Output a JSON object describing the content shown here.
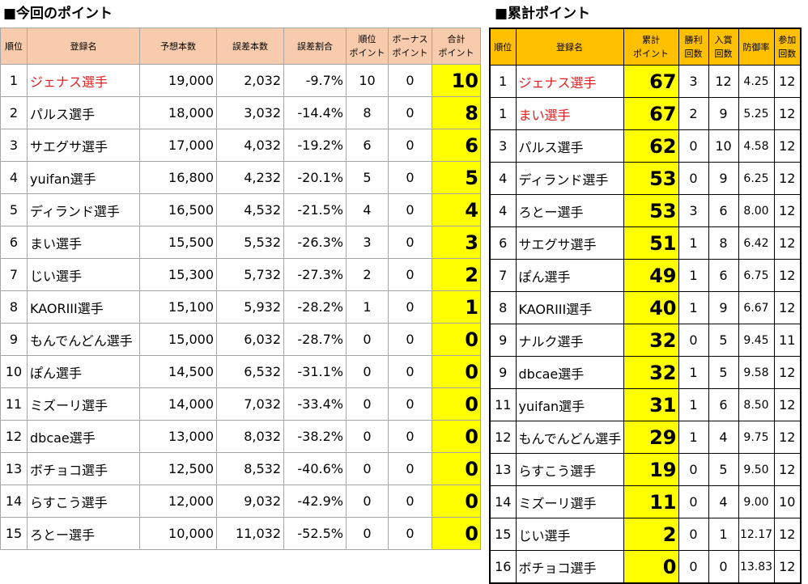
{
  "current": {
    "title": "■今回のポイント",
    "headers": [
      "順位",
      "登録名",
      "予想本数",
      "誤差本数",
      "誤差割合",
      "順位\nポイント",
      "ボーナス\nポイント",
      "合計\nポイント"
    ],
    "rows": [
      {
        "rank": "1",
        "name": "ジェナス選手",
        "red": true,
        "pred": "19,000",
        "err": "2,032",
        "ratio": "-9.7%",
        "rank_pt": "10",
        "bonus": "0",
        "total": "10"
      },
      {
        "rank": "2",
        "name": "パルス選手",
        "red": false,
        "pred": "18,000",
        "err": "3,032",
        "ratio": "-14.4%",
        "rank_pt": "8",
        "bonus": "0",
        "total": "8"
      },
      {
        "rank": "3",
        "name": "サエグサ選手",
        "red": false,
        "pred": "17,000",
        "err": "4,032",
        "ratio": "-19.2%",
        "rank_pt": "6",
        "bonus": "0",
        "total": "6"
      },
      {
        "rank": "4",
        "name": "yuifan選手",
        "red": false,
        "pred": "16,800",
        "err": "4,232",
        "ratio": "-20.1%",
        "rank_pt": "5",
        "bonus": "0",
        "total": "5"
      },
      {
        "rank": "5",
        "name": "ディランド選手",
        "red": false,
        "pred": "16,500",
        "err": "4,532",
        "ratio": "-21.5%",
        "rank_pt": "4",
        "bonus": "0",
        "total": "4"
      },
      {
        "rank": "6",
        "name": "まい選手",
        "red": false,
        "pred": "15,500",
        "err": "5,532",
        "ratio": "-26.3%",
        "rank_pt": "3",
        "bonus": "0",
        "total": "3"
      },
      {
        "rank": "7",
        "name": "じい選手",
        "red": false,
        "pred": "15,300",
        "err": "5,732",
        "ratio": "-27.3%",
        "rank_pt": "2",
        "bonus": "0",
        "total": "2"
      },
      {
        "rank": "8",
        "name": "KAORIII選手",
        "red": false,
        "pred": "15,100",
        "err": "5,932",
        "ratio": "-28.2%",
        "rank_pt": "1",
        "bonus": "0",
        "total": "1"
      },
      {
        "rank": "9",
        "name": "もんでんどん選手",
        "red": false,
        "pred": "15,000",
        "err": "6,032",
        "ratio": "-28.7%",
        "rank_pt": "0",
        "bonus": "0",
        "total": "0"
      },
      {
        "rank": "10",
        "name": "ぽん選手",
        "red": false,
        "pred": "14,500",
        "err": "6,532",
        "ratio": "-31.1%",
        "rank_pt": "0",
        "bonus": "0",
        "total": "0"
      },
      {
        "rank": "11",
        "name": "ミズーリ選手",
        "red": false,
        "pred": "14,000",
        "err": "7,032",
        "ratio": "-33.4%",
        "rank_pt": "0",
        "bonus": "0",
        "total": "0"
      },
      {
        "rank": "12",
        "name": "dbcae選手",
        "red": false,
        "pred": "13,000",
        "err": "8,032",
        "ratio": "-38.2%",
        "rank_pt": "0",
        "bonus": "0",
        "total": "0"
      },
      {
        "rank": "13",
        "name": "ボチョコ選手",
        "red": false,
        "pred": "12,500",
        "err": "8,532",
        "ratio": "-40.6%",
        "rank_pt": "0",
        "bonus": "0",
        "total": "0"
      },
      {
        "rank": "14",
        "name": "らすこう選手",
        "red": false,
        "pred": "12,000",
        "err": "9,032",
        "ratio": "-42.9%",
        "rank_pt": "0",
        "bonus": "0",
        "total": "0"
      },
      {
        "rank": "15",
        "name": "ろとー選手",
        "red": false,
        "pred": "10,000",
        "err": "11,032",
        "ratio": "-52.5%",
        "rank_pt": "0",
        "bonus": "0",
        "total": "0"
      }
    ]
  },
  "total": {
    "title": "■累計ポイント",
    "headers": [
      "順位",
      "登録名",
      "累計\nポイント",
      "勝利\n回数",
      "入賞\n回数",
      "防御率",
      "参加\n回数"
    ],
    "rows": [
      {
        "rank": "1",
        "name": "ジェナス選手",
        "red": true,
        "points": "67",
        "wins": "3",
        "placed": "12",
        "era": "4.25",
        "played": "12"
      },
      {
        "rank": "1",
        "name": "まい選手",
        "red": true,
        "points": "67",
        "wins": "2",
        "placed": "9",
        "era": "5.25",
        "played": "12"
      },
      {
        "rank": "3",
        "name": "パルス選手",
        "red": false,
        "points": "62",
        "wins": "0",
        "placed": "10",
        "era": "4.58",
        "played": "12"
      },
      {
        "rank": "4",
        "name": "ディランド選手",
        "red": false,
        "points": "53",
        "wins": "0",
        "placed": "9",
        "era": "6.25",
        "played": "12"
      },
      {
        "rank": "4",
        "name": "ろとー選手",
        "red": false,
        "points": "53",
        "wins": "3",
        "placed": "6",
        "era": "8.00",
        "played": "12"
      },
      {
        "rank": "6",
        "name": "サエグサ選手",
        "red": false,
        "points": "51",
        "wins": "1",
        "placed": "8",
        "era": "6.42",
        "played": "12"
      },
      {
        "rank": "7",
        "name": "ぽん選手",
        "red": false,
        "points": "49",
        "wins": "1",
        "placed": "6",
        "era": "6.75",
        "played": "12"
      },
      {
        "rank": "8",
        "name": "KAORIII選手",
        "red": false,
        "points": "40",
        "wins": "1",
        "placed": "9",
        "era": "6.67",
        "played": "12"
      },
      {
        "rank": "9",
        "name": "ナルク選手",
        "red": false,
        "points": "32",
        "wins": "0",
        "placed": "5",
        "era": "9.45",
        "played": "11"
      },
      {
        "rank": "9",
        "name": "dbcae選手",
        "red": false,
        "points": "32",
        "wins": "1",
        "placed": "5",
        "era": "9.58",
        "played": "12"
      },
      {
        "rank": "11",
        "name": "yuifan選手",
        "red": false,
        "points": "31",
        "wins": "1",
        "placed": "6",
        "era": "8.50",
        "played": "12"
      },
      {
        "rank": "12",
        "name": "もんでんどん選手",
        "red": false,
        "points": "29",
        "wins": "1",
        "placed": "4",
        "era": "9.75",
        "played": "12"
      },
      {
        "rank": "13",
        "name": "らすこう選手",
        "red": false,
        "points": "19",
        "wins": "0",
        "placed": "5",
        "era": "9.50",
        "played": "12"
      },
      {
        "rank": "14",
        "name": "ミズーリ選手",
        "red": false,
        "points": "11",
        "wins": "0",
        "placed": "4",
        "era": "9.00",
        "played": "10"
      },
      {
        "rank": "15",
        "name": "じい選手",
        "red": false,
        "points": "2",
        "wins": "0",
        "placed": "1",
        "era": "12.17",
        "played": "12"
      },
      {
        "rank": "16",
        "name": "ボチョコ選手",
        "red": false,
        "points": "0",
        "wins": "0",
        "placed": "0",
        "era": "13.83",
        "played": "12"
      }
    ]
  },
  "colors": {
    "current_header_bg": "#f8cbad",
    "total_header_bg": "#ffc000",
    "points_highlight": "#ffff00",
    "leader_name": "#e02020"
  }
}
